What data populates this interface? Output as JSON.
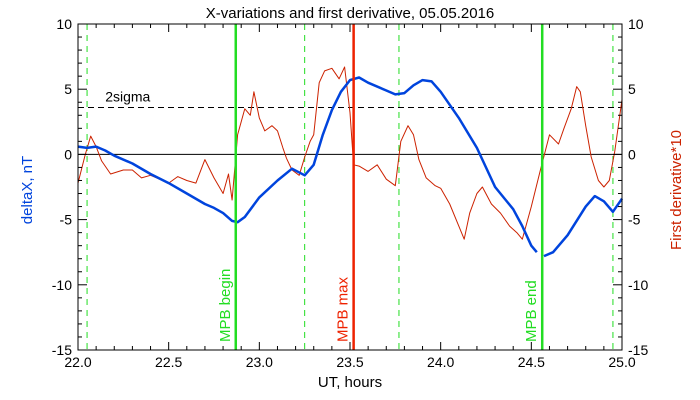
{
  "chart_data": {
    "type": "line",
    "title": "X-variations and first derivative, 05.05.2016",
    "xlabel": "UT, hours",
    "ylabel_left": "deltaX, nT",
    "ylabel_right": "First derivative*10",
    "xlim": [
      22.0,
      25.0
    ],
    "ylim": [
      -15,
      10
    ],
    "x_ticks": [
      "22.0",
      "22.5",
      "23.0",
      "23.5",
      "24.0",
      "24.5",
      "25.0"
    ],
    "x_tick_values": [
      22.0,
      22.5,
      23.0,
      23.5,
      24.0,
      24.5,
      25.0
    ],
    "y_ticks_left": [
      "-15",
      "-10",
      "-5",
      "0",
      "5",
      "10"
    ],
    "y_ticks_right": [
      "-15",
      "-10",
      "-5",
      "0",
      "5",
      "10"
    ],
    "y_tick_values": [
      -15,
      -10,
      -5,
      0,
      5,
      10
    ],
    "grid": false,
    "zero_line": 0,
    "sigma_level": 3.6,
    "sigma_label": "2sigma",
    "colors": {
      "deltaX": "#0044dd",
      "derivative": "#cc2200",
      "mpb_lines": "#22dd22",
      "max_line": "#ee2200",
      "axes": "#000000"
    },
    "vertical_lines": {
      "solid": [
        {
          "x": 22.87,
          "label": "MPB begin",
          "color": "#22dd22"
        },
        {
          "x": 23.52,
          "label": "MPB max",
          "color": "#ee2200"
        },
        {
          "x": 24.56,
          "label": "MPB end",
          "color": "#22dd22"
        }
      ],
      "dashed": [
        22.05,
        23.25,
        23.77,
        24.95
      ]
    },
    "series": [
      {
        "name": "deltaX, nT",
        "color": "#0044dd",
        "segments": [
          [
            [
              22.0,
              0.6
            ],
            [
              22.05,
              0.5
            ],
            [
              22.1,
              0.6
            ],
            [
              22.15,
              0.3
            ],
            [
              22.2,
              -0.1
            ],
            [
              22.3,
              -0.7
            ],
            [
              22.4,
              -1.5
            ],
            [
              22.5,
              -2.2
            ],
            [
              22.6,
              -3.0
            ],
            [
              22.7,
              -3.8
            ],
            [
              22.75,
              -4.1
            ],
            [
              22.8,
              -4.5
            ],
            [
              22.85,
              -5.1
            ],
            [
              22.88,
              -5.2
            ],
            [
              22.92,
              -4.8
            ],
            [
              23.0,
              -3.3
            ],
            [
              23.1,
              -2.0
            ],
            [
              23.18,
              -1.1
            ],
            [
              23.25,
              -1.6
            ],
            [
              23.3,
              -0.8
            ],
            [
              23.35,
              1.5
            ],
            [
              23.4,
              3.4
            ],
            [
              23.45,
              4.8
            ],
            [
              23.5,
              5.7
            ],
            [
              23.55,
              5.9
            ],
            [
              23.6,
              5.5
            ],
            [
              23.7,
              4.9
            ],
            [
              23.75,
              4.6
            ],
            [
              23.8,
              4.7
            ],
            [
              23.85,
              5.3
            ],
            [
              23.9,
              5.7
            ],
            [
              23.95,
              5.6
            ],
            [
              24.0,
              4.8
            ],
            [
              24.1,
              2.8
            ],
            [
              24.2,
              0.5
            ],
            [
              24.3,
              -2.5
            ],
            [
              24.4,
              -4.2
            ],
            [
              24.45,
              -5.5
            ],
            [
              24.5,
              -7.0
            ],
            [
              24.53,
              -7.5
            ]
          ],
          [
            [
              24.57,
              -7.8
            ],
            [
              24.62,
              -7.5
            ],
            [
              24.7,
              -6.2
            ],
            [
              24.8,
              -4.0
            ],
            [
              24.85,
              -3.2
            ],
            [
              24.9,
              -3.6
            ],
            [
              24.95,
              -4.4
            ],
            [
              25.0,
              -3.4
            ]
          ]
        ]
      },
      {
        "name": "First derivative*10",
        "color": "#cc2200",
        "segments": [
          [
            [
              22.0,
              -2.2
            ],
            [
              22.04,
              0.0
            ],
            [
              22.07,
              1.4
            ],
            [
              22.1,
              0.6
            ],
            [
              22.13,
              -0.5
            ],
            [
              22.18,
              -1.5
            ],
            [
              22.25,
              -1.2
            ],
            [
              22.3,
              -1.2
            ],
            [
              22.35,
              -1.8
            ],
            [
              22.4,
              -1.6
            ],
            [
              22.45,
              -1.9
            ],
            [
              22.5,
              -2.2
            ],
            [
              22.55,
              -1.7
            ],
            [
              22.6,
              -2.0
            ],
            [
              22.65,
              -2.2
            ],
            [
              22.7,
              -0.4
            ],
            [
              22.75,
              -1.8
            ],
            [
              22.8,
              -3.0
            ],
            [
              22.83,
              -1.5
            ],
            [
              22.85,
              -3.5
            ],
            [
              22.88,
              1.5
            ],
            [
              22.92,
              3.5
            ],
            [
              22.95,
              3.0
            ],
            [
              22.97,
              4.8
            ],
            [
              23.0,
              2.8
            ],
            [
              23.03,
              1.8
            ],
            [
              23.07,
              2.2
            ],
            [
              23.1,
              1.8
            ],
            [
              23.13,
              0.5
            ],
            [
              23.15,
              -0.3
            ],
            [
              23.18,
              -1.2
            ],
            [
              23.22,
              -1.6
            ],
            [
              23.25,
              -0.2
            ],
            [
              23.28,
              1.0
            ],
            [
              23.3,
              1.5
            ],
            [
              23.33,
              5.5
            ],
            [
              23.36,
              6.4
            ],
            [
              23.4,
              6.6
            ],
            [
              23.44,
              5.8
            ],
            [
              23.47,
              6.7
            ],
            [
              23.5,
              3.2
            ],
            [
              23.52,
              -0.8
            ],
            [
              23.55,
              -0.9
            ],
            [
              23.6,
              -1.3
            ],
            [
              23.65,
              -0.8
            ],
            [
              23.7,
              -1.9
            ],
            [
              23.75,
              -2.4
            ],
            [
              23.78,
              1.0
            ],
            [
              23.82,
              2.2
            ],
            [
              23.85,
              1.5
            ],
            [
              23.88,
              -0.4
            ],
            [
              23.92,
              -1.8
            ],
            [
              23.97,
              -2.4
            ],
            [
              24.0,
              -2.6
            ],
            [
              24.05,
              -3.8
            ],
            [
              24.1,
              -5.5
            ],
            [
              24.13,
              -6.5
            ],
            [
              24.16,
              -4.5
            ],
            [
              24.2,
              -3.0
            ],
            [
              24.23,
              -2.5
            ],
            [
              24.28,
              -3.8
            ],
            [
              24.33,
              -4.5
            ],
            [
              24.38,
              -5.5
            ],
            [
              24.42,
              -6.0
            ],
            [
              24.45,
              -6.5
            ],
            [
              24.5,
              -4.0
            ],
            [
              24.55,
              -1.2
            ],
            [
              24.6,
              1.5
            ],
            [
              24.65,
              0.8
            ],
            [
              24.68,
              2.0
            ],
            [
              24.72,
              3.5
            ],
            [
              24.75,
              5.2
            ],
            [
              24.77,
              4.8
            ],
            [
              24.8,
              2.2
            ],
            [
              24.83,
              -0.2
            ],
            [
              24.87,
              -2.0
            ],
            [
              24.9,
              -2.5
            ],
            [
              24.93,
              -2.0
            ],
            [
              24.96,
              0.2
            ],
            [
              25.0,
              4.2
            ]
          ]
        ]
      }
    ]
  }
}
